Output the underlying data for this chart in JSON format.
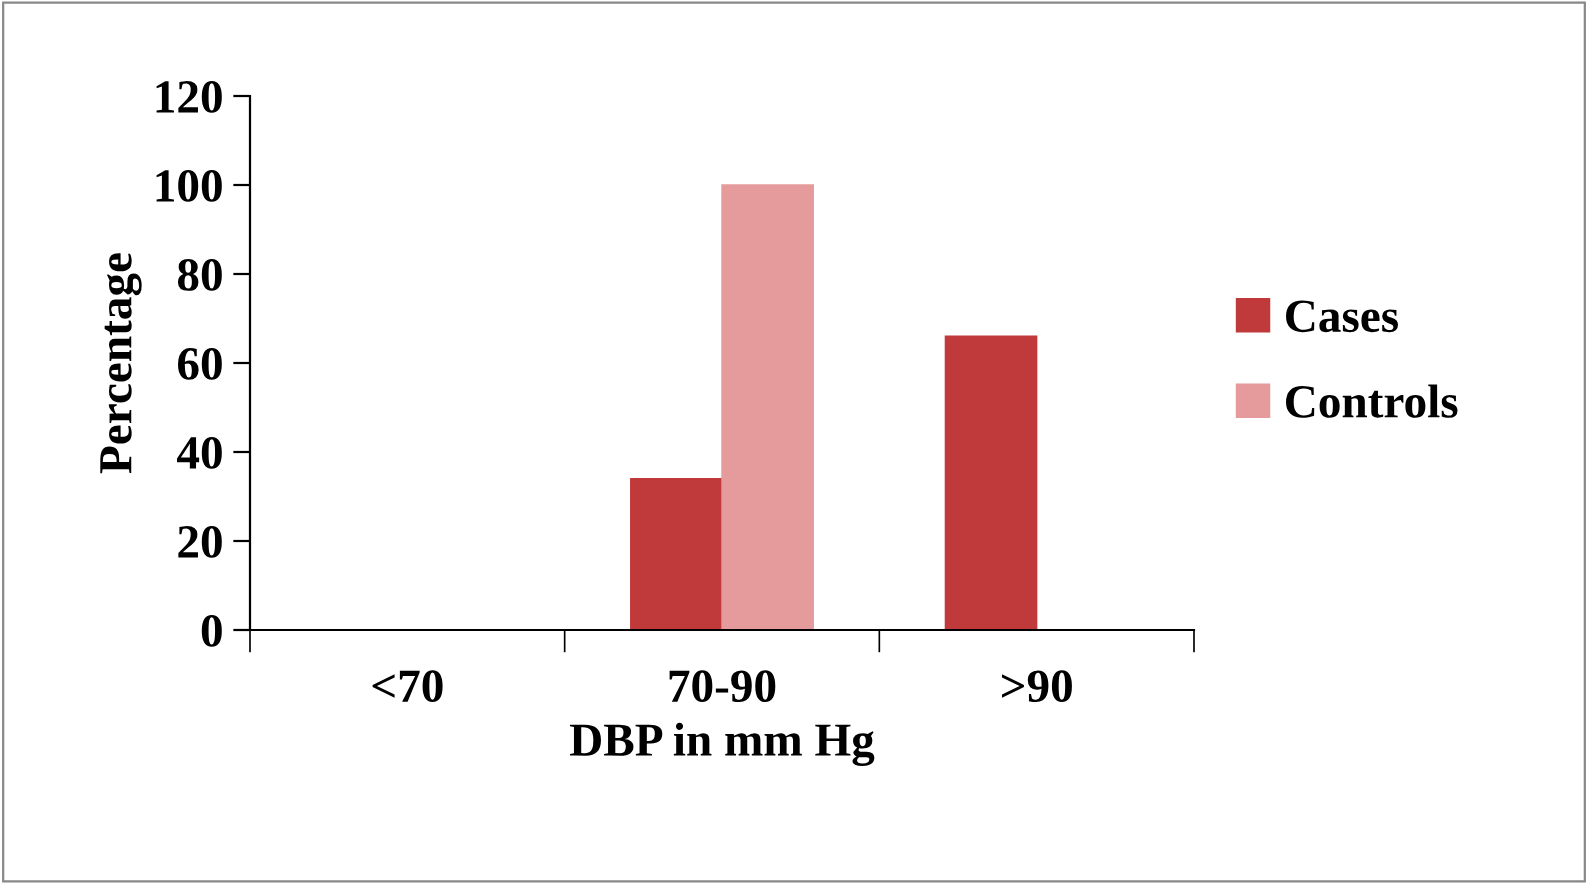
{
  "chart_data": {
    "type": "bar",
    "xlabel": "DBP in mm Hg",
    "ylabel": "Percentage",
    "categories": [
      "<70",
      "70-90",
      ">90"
    ],
    "series": [
      {
        "name": "Cases",
        "color": "#c0393b",
        "values": [
          0,
          34,
          66
        ]
      },
      {
        "name": "Controls",
        "color": "#e59a9c",
        "values": [
          0,
          100,
          0
        ]
      }
    ],
    "ylim": [
      0,
      120
    ],
    "yticks": [
      0,
      20,
      40,
      60,
      80,
      100,
      120
    ],
    "grid": false,
    "legend": "right"
  }
}
